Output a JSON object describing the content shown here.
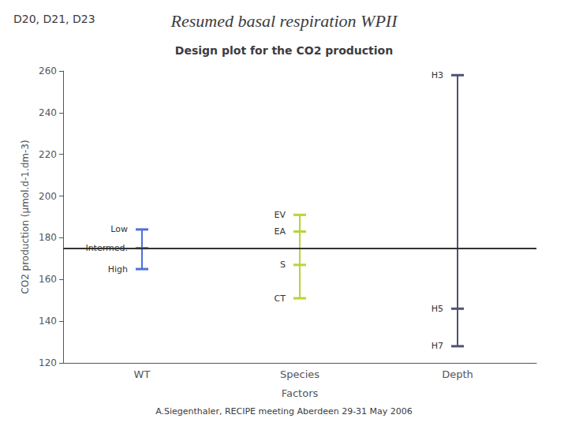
{
  "chart_data": {
    "type": "design",
    "title": "Resumed basal respiration WPII",
    "header": "D20, D21, D23",
    "subtitle": "Design plot for the CO2 production",
    "footer": "A.Siegenthaler, RECIPE meeting Aberdeen 29-31 May 2006",
    "xlabel": "Factors",
    "ylabel": "CO2 production (μmol.d-1.dm-3)",
    "categories": [
      "WT",
      "Species",
      "Depth"
    ],
    "levels": [
      [
        {
          "label": "Low",
          "value": 184
        },
        {
          "label": "Intermed.",
          "value": 175
        },
        {
          "label": "High",
          "value": 165
        }
      ],
      [
        {
          "label": "EV",
          "value": 191
        },
        {
          "label": "EA",
          "value": 183
        },
        {
          "label": "S",
          "value": 167
        },
        {
          "label": "CT",
          "value": 151
        }
      ],
      [
        {
          "label": "H3",
          "value": 258
        },
        {
          "label": "H5",
          "value": 146
        },
        {
          "label": "H7",
          "value": 128
        }
      ]
    ],
    "grand_mean": 175,
    "ylim": [
      120,
      260
    ],
    "yticks": [
      120,
      140,
      160,
      180,
      200,
      220,
      240,
      260
    ],
    "grid": false
  }
}
